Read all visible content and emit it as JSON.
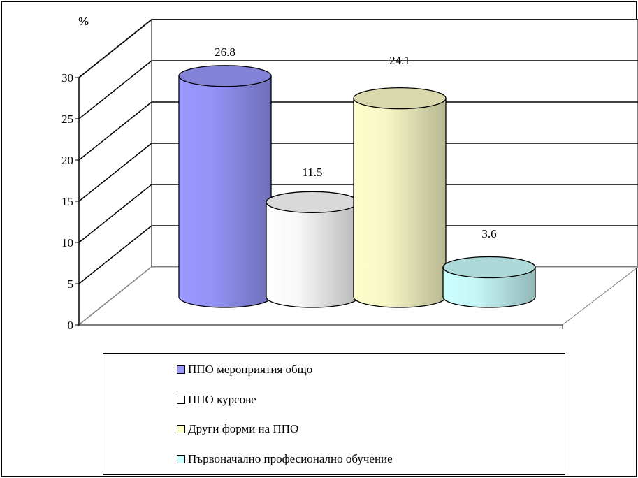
{
  "chart_data": {
    "type": "bar",
    "style": "3d-cylinder",
    "ylabel": "%",
    "ylim": [
      0,
      30
    ],
    "yticks": [
      "0",
      "5",
      "10",
      "15",
      "20",
      "25",
      "30"
    ],
    "grid": true,
    "legend_position": "bottom",
    "series": [
      {
        "name": "ППО мероприятия общо",
        "value": 26.8,
        "label": "26.8",
        "color": "#9999ff"
      },
      {
        "name": "ППО курсове",
        "value": 11.5,
        "label": "11.5",
        "color": "#ffffff"
      },
      {
        "name": "Други форми на ППО",
        "value": 24.1,
        "label": "24.1",
        "color": "#ffffcc"
      },
      {
        "name": "Първоначално професионално обучение",
        "value": 3.6,
        "label": "3.6",
        "color": "#ccffff"
      }
    ]
  }
}
